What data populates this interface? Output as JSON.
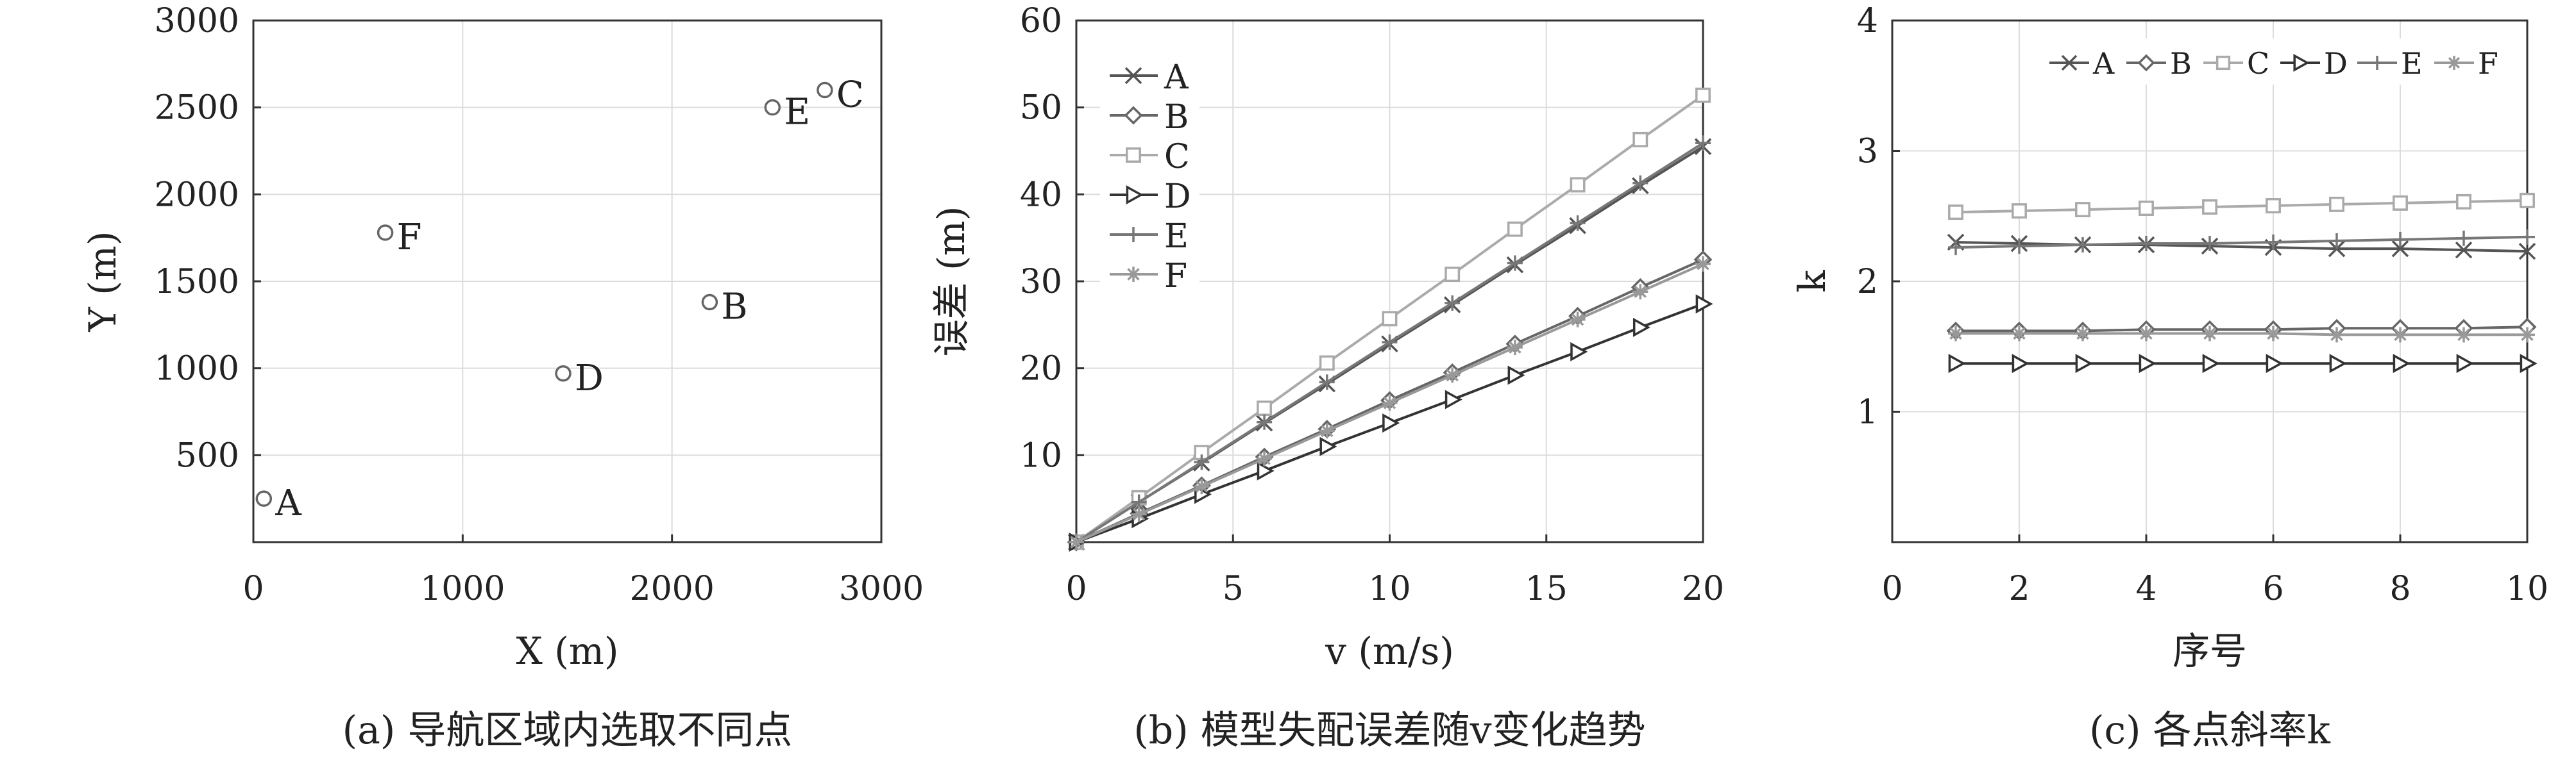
{
  "chart_data": [
    {
      "type": "scatter",
      "caption": "(a) 导航区域内选取不同点",
      "xlabel": "X (m)",
      "ylabel": "Y (m)",
      "xlim": [
        0,
        3000
      ],
      "ylim": [
        0,
        3000
      ],
      "xticks": [
        "0",
        "1000",
        "2000",
        "3000"
      ],
      "yticks": [
        "500",
        "1000",
        "1500",
        "2000",
        "2500",
        "3000"
      ],
      "grid": true,
      "points": [
        {
          "label": "A",
          "x": 50,
          "y": 250
        },
        {
          "label": "B",
          "x": 2180,
          "y": 1380
        },
        {
          "label": "C",
          "x": 2730,
          "y": 2600
        },
        {
          "label": "D",
          "x": 1480,
          "y": 970
        },
        {
          "label": "E",
          "x": 2480,
          "y": 2500
        },
        {
          "label": "F",
          "x": 630,
          "y": 1780
        }
      ]
    },
    {
      "type": "line",
      "caption": "(b) 模型失配误差随v变化趋势",
      "xlabel": "v (m/s)",
      "ylabel": "误差 (m)",
      "xlim": [
        0,
        20
      ],
      "ylim": [
        0,
        60
      ],
      "xticks": [
        "0",
        "5",
        "10",
        "15",
        "20"
      ],
      "yticks": [
        "10",
        "20",
        "30",
        "40",
        "50",
        "60"
      ],
      "grid": true,
      "legend_position": "top-left",
      "x": [
        0,
        2,
        4,
        6,
        8,
        10,
        12,
        14,
        16,
        18,
        20
      ],
      "series": [
        {
          "name": "A",
          "marker": "x",
          "color": "#555555",
          "values": [
            0,
            4.6,
            9.1,
            13.7,
            18.2,
            22.8,
            27.3,
            31.9,
            36.4,
            41.0,
            45.5
          ]
        },
        {
          "name": "B",
          "marker": "diamond",
          "color": "#666666",
          "values": [
            0,
            3.3,
            6.5,
            9.8,
            13.0,
            16.3,
            19.5,
            22.8,
            26.0,
            29.3,
            32.5
          ]
        },
        {
          "name": "C",
          "marker": "square",
          "color": "#aaaaaa",
          "values": [
            0,
            5.1,
            10.3,
            15.4,
            20.6,
            25.7,
            30.8,
            36.0,
            41.1,
            46.3,
            51.4
          ]
        },
        {
          "name": "D",
          "marker": "triangle-right",
          "color": "#333333",
          "values": [
            0,
            2.7,
            5.5,
            8.2,
            11.0,
            13.7,
            16.4,
            19.2,
            21.9,
            24.7,
            27.4
          ]
        },
        {
          "name": "E",
          "marker": "plus",
          "color": "#777777",
          "values": [
            0,
            4.6,
            9.2,
            13.8,
            18.4,
            23.0,
            27.5,
            32.1,
            36.7,
            41.3,
            45.9
          ]
        },
        {
          "name": "F",
          "marker": "star",
          "color": "#999999",
          "values": [
            0,
            3.2,
            6.4,
            9.6,
            12.8,
            16.0,
            19.2,
            22.4,
            25.6,
            28.8,
            32.0
          ]
        }
      ]
    },
    {
      "type": "line",
      "caption": "(c) 各点斜率k",
      "xlabel": "序号",
      "ylabel": "k",
      "xlim": [
        0,
        10
      ],
      "ylim": [
        0,
        4
      ],
      "xticks": [
        "0",
        "2",
        "4",
        "6",
        "8",
        "10"
      ],
      "yticks": [
        "1",
        "2",
        "3",
        "4"
      ],
      "grid": true,
      "legend_position": "top",
      "x": [
        1,
        2,
        3,
        4,
        5,
        6,
        7,
        8,
        9,
        10
      ],
      "series": [
        {
          "name": "A",
          "marker": "x",
          "color": "#555555",
          "values": [
            2.3,
            2.29,
            2.28,
            2.28,
            2.27,
            2.26,
            2.25,
            2.25,
            2.24,
            2.23
          ]
        },
        {
          "name": "B",
          "marker": "diamond",
          "color": "#666666",
          "values": [
            1.62,
            1.62,
            1.62,
            1.63,
            1.63,
            1.63,
            1.64,
            1.64,
            1.64,
            1.65
          ]
        },
        {
          "name": "C",
          "marker": "square",
          "color": "#aaaaaa",
          "values": [
            2.53,
            2.54,
            2.55,
            2.56,
            2.57,
            2.58,
            2.59,
            2.6,
            2.61,
            2.62
          ]
        },
        {
          "name": "D",
          "marker": "triangle-right",
          "color": "#333333",
          "values": [
            1.37,
            1.37,
            1.37,
            1.37,
            1.37,
            1.37,
            1.37,
            1.37,
            1.37,
            1.37
          ]
        },
        {
          "name": "E",
          "marker": "plus",
          "color": "#777777",
          "values": [
            2.26,
            2.27,
            2.28,
            2.29,
            2.29,
            2.3,
            2.31,
            2.32,
            2.33,
            2.34
          ]
        },
        {
          "name": "F",
          "marker": "star",
          "color": "#999999",
          "values": [
            1.6,
            1.6,
            1.6,
            1.6,
            1.6,
            1.6,
            1.59,
            1.59,
            1.59,
            1.59
          ]
        }
      ]
    }
  ]
}
